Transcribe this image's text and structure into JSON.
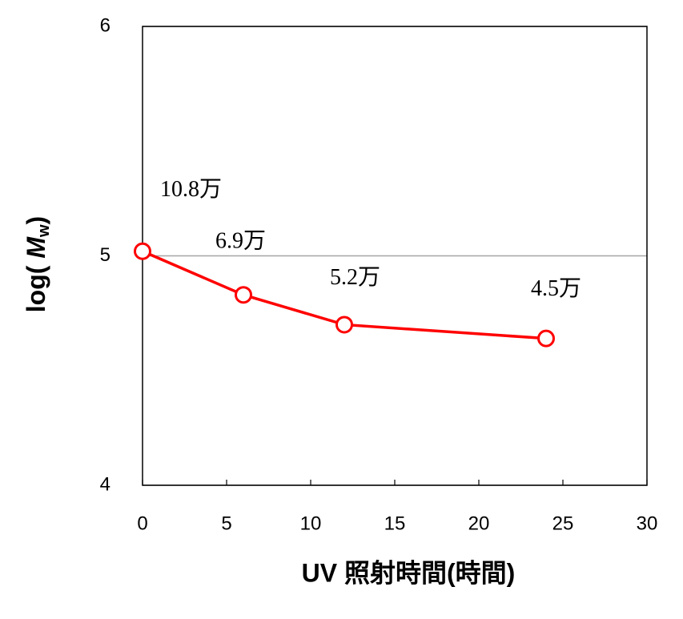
{
  "chart_data": {
    "type": "line",
    "x_label": "UV 照射時間(時間)",
    "y_label": {
      "prefix": "log( ",
      "main": "M",
      "sub": "w",
      "suffix": ")"
    },
    "x": [
      0,
      6,
      12,
      24
    ],
    "series": [
      {
        "color": "#ff0000",
        "values": [
          5.02,
          4.83,
          4.7,
          4.64
        ]
      }
    ],
    "annotations": [
      "10.8万",
      "6.9万",
      "5.2万",
      "4.5万"
    ],
    "xlim": [
      0,
      30
    ],
    "xticks": [
      0,
      5,
      10,
      15,
      20,
      25,
      30
    ],
    "ylim": [
      4,
      6
    ],
    "yticks": [
      4,
      5,
      6
    ],
    "grid": true
  }
}
